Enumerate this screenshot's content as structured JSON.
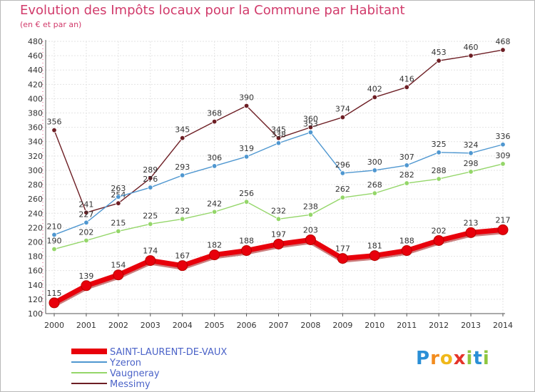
{
  "chart_data": {
    "type": "line",
    "title": "Evolution des Impôts locaux pour la Commune par Habitant",
    "subtitle": "(en € et par an)",
    "x": [
      "2000",
      "2001",
      "2002",
      "2003",
      "2004",
      "2005",
      "2006",
      "2007",
      "2008",
      "2009",
      "2010",
      "2011",
      "2012",
      "2013",
      "2014"
    ],
    "ylim": [
      100,
      480
    ],
    "yticks": [
      100,
      120,
      140,
      160,
      180,
      200,
      220,
      240,
      260,
      280,
      300,
      320,
      340,
      360,
      380,
      400,
      420,
      440,
      460,
      480
    ],
    "grid": true,
    "legend_position": "bottom-left",
    "series": [
      {
        "name": "SAINT-LAURENT-DE-VAUX",
        "color": "#e8000b",
        "values": [
          115,
          139,
          154,
          174,
          167,
          182,
          188,
          197,
          203,
          177,
          181,
          188,
          202,
          213,
          217
        ]
      },
      {
        "name": "Yzeron",
        "color": "#4f97d0",
        "values": [
          210,
          227,
          263,
          276,
          293,
          306,
          319,
          338,
          353,
          296,
          300,
          307,
          325,
          324,
          336
        ]
      },
      {
        "name": "Vaugneray",
        "color": "#94d669",
        "values": [
          190,
          202,
          215,
          225,
          232,
          242,
          256,
          232,
          238,
          262,
          268,
          282,
          288,
          298,
          309
        ]
      },
      {
        "name": "Messimy",
        "color": "#6d1e24",
        "values": [
          356,
          241,
          254,
          289,
          345,
          368,
          390,
          345,
          360,
          374,
          402,
          416,
          453,
          460,
          468
        ]
      }
    ]
  },
  "logo": {
    "letters": [
      "P",
      "r",
      "o",
      "x",
      "i",
      "t",
      "i"
    ],
    "colors": [
      "#2a8fd6",
      "#f28c1e",
      "#f0b81a",
      "#e5342a",
      "#8ec63f",
      "#2a8fd6",
      "#8ec63f"
    ]
  }
}
